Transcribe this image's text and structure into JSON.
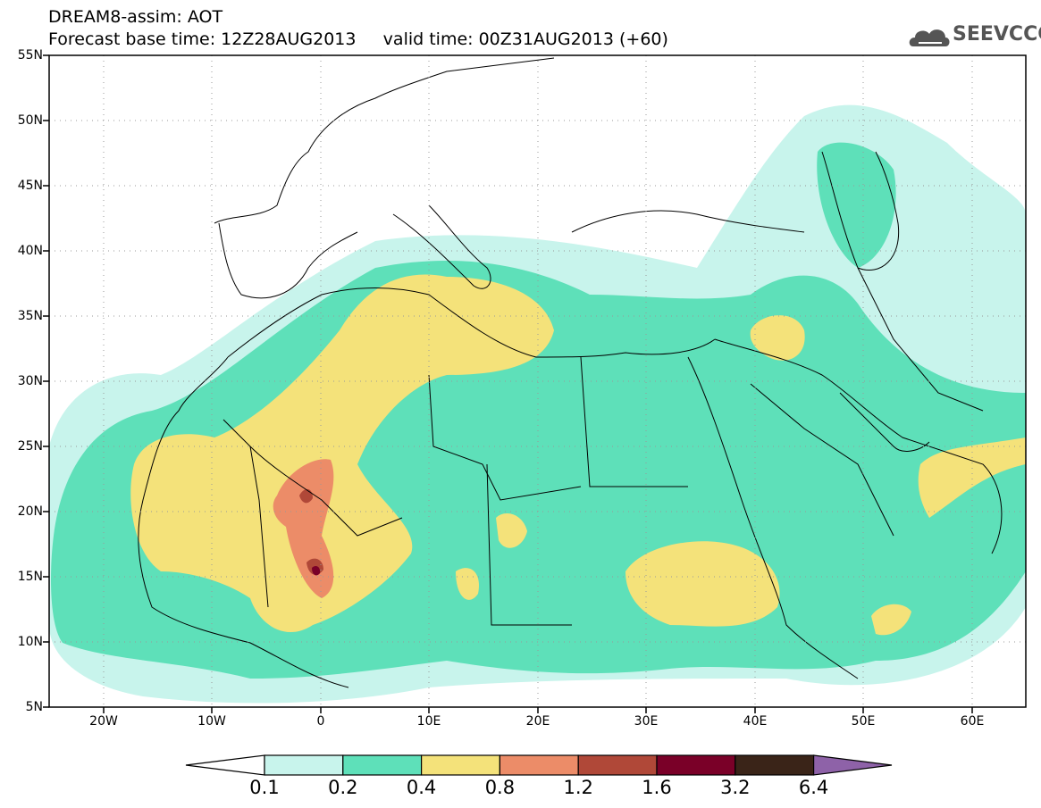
{
  "header": {
    "line1": "DREAM8-assim: AOT",
    "line2": "Forecast base time: 12Z28AUG2013     valid time: 00Z31AUG2013 (+60)"
  },
  "logo": {
    "text": "SEEVCCC",
    "icon": "cloud-icon"
  },
  "map": {
    "lon_range": [
      -25,
      65
    ],
    "lat_range": [
      5,
      55
    ],
    "lat_labels": [
      "55N",
      "50N",
      "45N",
      "40N",
      "35N",
      "30N",
      "25N",
      "20N",
      "15N",
      "10N",
      "5N"
    ],
    "lon_labels": [
      "20W",
      "10W",
      "0",
      "10E",
      "20E",
      "30E",
      "40E",
      "50E",
      "60E"
    ],
    "grid": "dotted"
  },
  "colorbar": {
    "labels": [
      "0.1",
      "0.2",
      "0.4",
      "0.8",
      "1.2",
      "1.6",
      "3.2",
      "6.4"
    ],
    "colors": [
      "#ffffff",
      "#c8f4ec",
      "#5ee0b9",
      "#f4e27a",
      "#ec8c68",
      "#b04838",
      "#7a0028",
      "#3a2418",
      "#8e62a8"
    ]
  }
}
